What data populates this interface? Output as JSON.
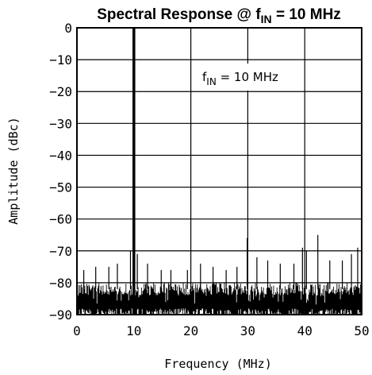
{
  "chart_data": {
    "type": "line",
    "title": "Spectral Response @ f",
    "title_sub": "IN",
    "title_tail": " = 10 MHz",
    "xlabel": "Frequency (MHz)",
    "ylabel": "Amplitude (dBc)",
    "xlim": [
      0,
      50
    ],
    "ylim": [
      -90,
      0
    ],
    "x_ticks": [
      0,
      10,
      20,
      30,
      40,
      50
    ],
    "x_tick_labels": [
      "0",
      "10",
      "20",
      "30",
      "40",
      "50"
    ],
    "y_ticks": [
      0,
      -10,
      -20,
      -30,
      -40,
      -50,
      -60,
      -70,
      -80,
      -90
    ],
    "y_tick_labels": [
      "0",
      "−10",
      "−20",
      "−30",
      "−40",
      "−50",
      "−60",
      "−70",
      "−80",
      "−90"
    ],
    "grid": true,
    "annotation": {
      "prefix": "f",
      "sub": "IN",
      "tail": " = 10 MHz"
    },
    "fundamental": {
      "x": 10,
      "y": 0
    },
    "noise_floor": {
      "typical_top": -80,
      "bottom": -90
    },
    "spurs": [
      {
        "x": 1.2,
        "y": -76
      },
      {
        "x": 3.3,
        "y": -75
      },
      {
        "x": 5.6,
        "y": -75
      },
      {
        "x": 7.1,
        "y": -74
      },
      {
        "x": 9.4,
        "y": -70
      },
      {
        "x": 10.6,
        "y": -71
      },
      {
        "x": 12.4,
        "y": -74
      },
      {
        "x": 14.8,
        "y": -76
      },
      {
        "x": 16.5,
        "y": -76
      },
      {
        "x": 19.4,
        "y": -76
      },
      {
        "x": 21.7,
        "y": -74
      },
      {
        "x": 23.9,
        "y": -75
      },
      {
        "x": 26.2,
        "y": -76
      },
      {
        "x": 28.1,
        "y": -75
      },
      {
        "x": 29.9,
        "y": -66
      },
      {
        "x": 31.6,
        "y": -72
      },
      {
        "x": 33.5,
        "y": -73
      },
      {
        "x": 35.7,
        "y": -74
      },
      {
        "x": 38.1,
        "y": -74
      },
      {
        "x": 39.6,
        "y": -69
      },
      {
        "x": 40.3,
        "y": -70
      },
      {
        "x": 42.3,
        "y": -65
      },
      {
        "x": 44.4,
        "y": -73
      },
      {
        "x": 46.6,
        "y": -73
      },
      {
        "x": 48.2,
        "y": -71
      },
      {
        "x": 49.3,
        "y": -69
      }
    ]
  }
}
